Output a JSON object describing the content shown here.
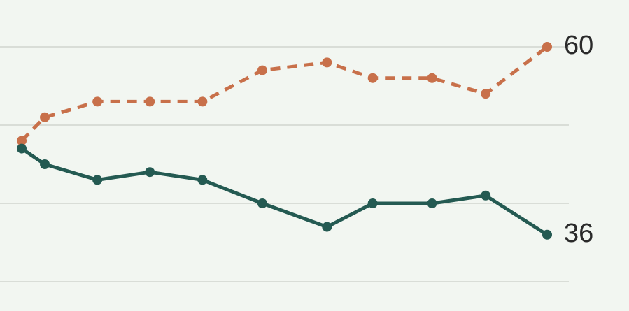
{
  "chart_data": {
    "type": "line",
    "x": [
      0,
      0.44,
      1.44,
      2.44,
      3.44,
      4.58,
      5.81,
      6.68,
      7.81,
      8.83,
      10
    ],
    "xlim": [
      0,
      10
    ],
    "ylim": [
      30,
      60
    ],
    "yticks": [
      30,
      40,
      50,
      60
    ],
    "grid": true,
    "series": [
      {
        "color": "#c8704a",
        "dashed": true,
        "values": [
          48,
          51,
          53,
          53,
          53,
          57,
          58,
          56,
          56,
          54,
          60
        ]
      },
      {
        "color": "#245a52",
        "dashed": false,
        "values": [
          47,
          45,
          43,
          44,
          43,
          40,
          37,
          40,
          40,
          41,
          36
        ]
      }
    ]
  }
}
